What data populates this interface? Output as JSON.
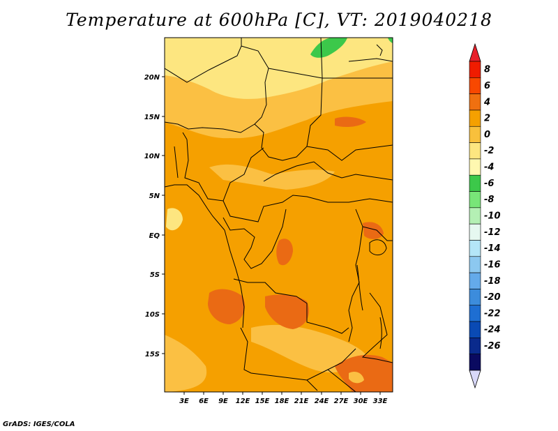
{
  "title": "Temperature at 600hPa [C], VT: 2019040218",
  "credit": "GrADS: IGES/COLA",
  "map": {
    "region": "Central Africa",
    "lat_labels": [
      "20N",
      "15N",
      "10N",
      "5N",
      "EQ",
      "5S",
      "10S",
      "15S"
    ],
    "lon_labels": [
      "3E",
      "6E",
      "9E",
      "12E",
      "15E",
      "18E",
      "21E",
      "24E",
      "27E",
      "30E",
      "33E"
    ],
    "colors": {
      "base": "#f5a000",
      "light": "#fbc043",
      "pale": "#fde680",
      "hot": "#ea6a14",
      "cool": "#3cc84a",
      "border": "#000000"
    }
  },
  "colorbar": {
    "labels": [
      "8",
      "6",
      "4",
      "2",
      "0",
      "-2",
      "-4",
      "-6",
      "-8",
      "-10",
      "-12",
      "-14",
      "-16",
      "-18",
      "-20",
      "-22",
      "-24",
      "-26"
    ],
    "colors": [
      "#f01c00",
      "#f84800",
      "#f07010",
      "#f5a000",
      "#f8c03c",
      "#fde680",
      "#fff8b0",
      "#3cc84a",
      "#78e678",
      "#b4f0b4",
      "#e6f8f0",
      "#b4e6f8",
      "#8cc8f0",
      "#64aaea",
      "#3c8cdc",
      "#1e6ed2",
      "#0a4ab4",
      "#0a2a8c",
      "#0a0a60"
    ],
    "top_arrow_color": "#e8202a",
    "bottom_arrow_color": "#d8d8f8"
  }
}
